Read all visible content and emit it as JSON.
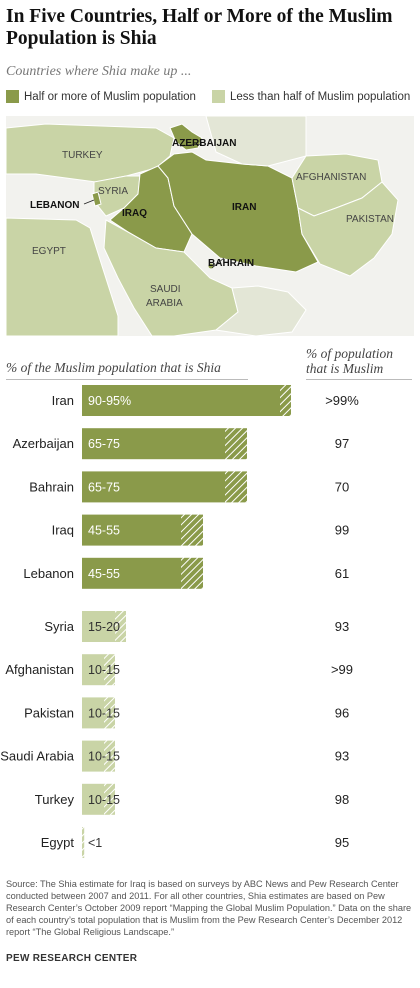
{
  "title": "In Five Countries, Half or More of the Muslim Population is Shia",
  "subtitle": "Countries where Shia make up ...",
  "legend": [
    {
      "label": "Half or more of Muslim population",
      "color": "#8a9a4a"
    },
    {
      "label": "Less than half of Muslim population",
      "color": "#c9d4a6"
    }
  ],
  "map": {
    "labels": {
      "turkey": "TURKEY",
      "azerbaijan": "AZERBAIJAN",
      "syria": "SYRIA",
      "lebanon": "LEBANON",
      "iraq": "IRAQ",
      "iran": "IRAN",
      "afghanistan": "AFGHANISTAN",
      "pakistan": "PAKISTAN",
      "bahrain": "BAHRAIN",
      "egypt": "EGYPT",
      "saudi_line1": "SAUDI",
      "saudi_line2": "ARABIA"
    }
  },
  "columns": {
    "left": "% of the Muslim population that is Shia",
    "right_line1": "% of population",
    "right_line2": "that is Muslim"
  },
  "chart_data": {
    "type": "bar",
    "orientation": "horizontal",
    "xlim": [
      0,
      100
    ],
    "rows": [
      {
        "country": "Iran",
        "label": "90-95%",
        "low": 90,
        "high": 95,
        "muslim": ">99%",
        "group": "majority"
      },
      {
        "country": "Azerbaijan",
        "label": "65-75",
        "low": 65,
        "high": 75,
        "muslim": "97",
        "group": "majority"
      },
      {
        "country": "Bahrain",
        "label": "65-75",
        "low": 65,
        "high": 75,
        "muslim": "70",
        "group": "majority"
      },
      {
        "country": "Iraq",
        "label": "45-55",
        "low": 45,
        "high": 55,
        "muslim": "99",
        "group": "majority"
      },
      {
        "country": "Lebanon",
        "label": "45-55",
        "low": 45,
        "high": 55,
        "muslim": "61",
        "group": "majority"
      },
      {
        "country": "Syria",
        "label": "15-20",
        "low": 15,
        "high": 20,
        "muslim": "93",
        "group": "minority"
      },
      {
        "country": "Afghanistan",
        "label": "10-15",
        "low": 10,
        "high": 15,
        "muslim": ">99",
        "group": "minority"
      },
      {
        "country": "Pakistan",
        "label": "10-15",
        "low": 10,
        "high": 15,
        "muslim": "96",
        "group": "minority"
      },
      {
        "country": "Saudi Arabia",
        "label": "10-15",
        "low": 10,
        "high": 15,
        "muslim": "93",
        "group": "minority"
      },
      {
        "country": "Turkey",
        "label": "10-15",
        "low": 10,
        "high": 15,
        "muslim": "98",
        "group": "minority"
      },
      {
        "country": "Egypt",
        "label": "<1",
        "low": 0,
        "high": 1,
        "muslim": "95",
        "group": "minority"
      }
    ]
  },
  "source": "Source: The Shia estimate for Iraq is based on surveys by ABC News and Pew Research Center conducted between 2007 and 2011. For all other countries, Shia estimates are based on Pew Research Center’s October 2009 report “Mapping the Global Muslim Population.” Data on the share of each country’s total population that is Muslim from the Pew Research Center’s December 2012 report “The Global Religious Landscape.”",
  "brand": "PEW RESEARCH CENTER"
}
